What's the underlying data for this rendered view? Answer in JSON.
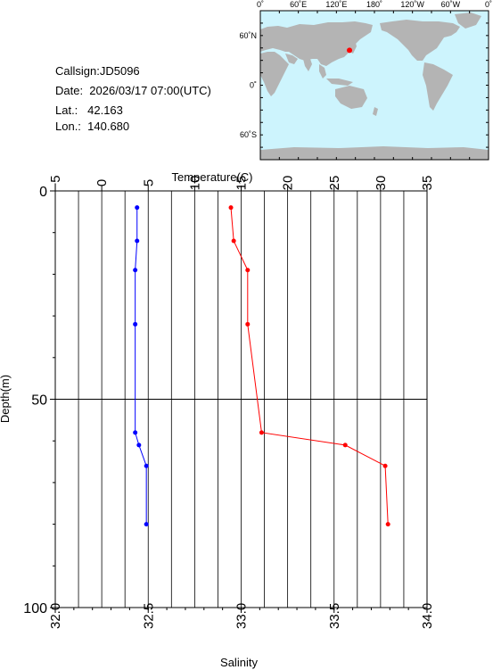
{
  "info": {
    "callsign": "Callsign:JD5096",
    "date": "Date:  2026/03/17 07:00(UTC)",
    "lat": "Lat.:   42.163",
    "lon": "Lon.:  140.680"
  },
  "map": {
    "lon_ticks": [
      "0˚",
      "60˚E",
      "120˚E",
      "180˚",
      "120˚W",
      "60˚W",
      "0˚"
    ],
    "lat_ticks": [
      "60˚N",
      "0˚",
      "60˚S"
    ],
    "ocean_color": "#cdf4fd",
    "land_color": "#b4b4b4",
    "marker_color": "#ff0000",
    "marker": {
      "lon": 140.68,
      "lat": 42.163
    }
  },
  "chart_data": {
    "type": "line",
    "y_axis": {
      "label": "Depth(m)",
      "range": [
        0,
        100
      ],
      "ticks": [
        "0",
        "50",
        "100"
      ],
      "inverted": true
    },
    "x_top": {
      "label": "Temperature(C)",
      "range": [
        -5,
        35
      ],
      "ticks": [
        "−5",
        "0",
        "5",
        "10",
        "15",
        "20",
        "25",
        "30",
        "35"
      ]
    },
    "x_bottom": {
      "label": "Salinity",
      "range": [
        32.0,
        34.0
      ],
      "ticks": [
        "32.0",
        "32.5",
        "33.0",
        "33.5",
        "34.0"
      ]
    },
    "grid": true,
    "series": [
      {
        "axis": "temperature",
        "color": "#ff0000",
        "points": [
          [
            13.9,
            4
          ],
          [
            14.2,
            12
          ],
          [
            15.7,
            19
          ],
          [
            15.7,
            32
          ],
          [
            17.2,
            58
          ],
          [
            26.2,
            61
          ],
          [
            30.5,
            66
          ],
          [
            30.8,
            80
          ]
        ]
      },
      {
        "axis": "salinity",
        "color": "#0000ff",
        "points": [
          [
            32.44,
            4
          ],
          [
            32.44,
            12
          ],
          [
            32.43,
            19
          ],
          [
            32.43,
            32
          ],
          [
            32.43,
            58
          ],
          [
            32.45,
            61
          ],
          [
            32.49,
            66
          ],
          [
            32.49,
            80
          ]
        ]
      }
    ]
  }
}
